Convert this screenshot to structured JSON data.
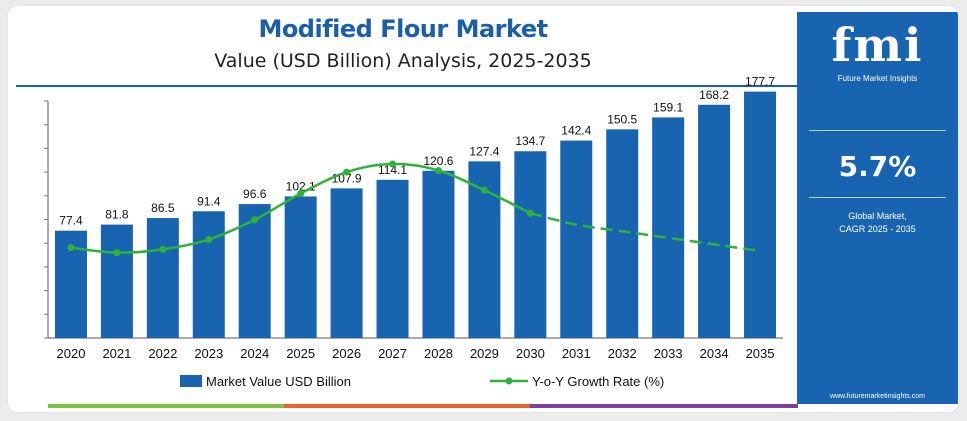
{
  "header": {
    "title": "Modified Flour Market",
    "subtitle": "Value (USD Billion) Analysis, 2025-2035"
  },
  "chart_data": {
    "type": "bar",
    "categories": [
      "2020",
      "2021",
      "2022",
      "2023",
      "2024",
      "2025",
      "2026",
      "2027",
      "2028",
      "2029",
      "2030",
      "2031",
      "2032",
      "2033",
      "2034",
      "2035"
    ],
    "series": [
      {
        "name": "Market Value USD Billion",
        "type": "bar",
        "values": [
          77.4,
          81.8,
          86.5,
          91.4,
          96.6,
          102.1,
          107.9,
          114.1,
          120.6,
          127.4,
          134.7,
          142.4,
          150.5,
          159.1,
          168.2,
          177.7
        ],
        "color": "#1864b0"
      },
      {
        "name": "Y-o-Y Growth Rate (%)",
        "type": "line",
        "values": [
          5.5,
          5.2,
          5.4,
          6.0,
          7.2,
          8.8,
          10.1,
          10.6,
          10.2,
          9.0,
          7.6,
          6.9,
          6.5,
          6.1,
          5.7,
          5.3
        ],
        "solid_until_index": 10,
        "color": "#2db33a"
      }
    ],
    "ylim": [
      0,
      200
    ],
    "y2lim": [
      0,
      14
    ],
    "legend_position": "bottom",
    "grid": false
  },
  "legend": {
    "bar_label": "Market Value USD Billion",
    "line_label": "Y-o-Y Growth Rate (%)"
  },
  "sidebar": {
    "logo_text": "fmi",
    "logo_subtext": "Future Market Insights",
    "cagr_value": "5.7%",
    "cagr_label_line1": "Global Market,",
    "cagr_label_line2": "CAGR 2025 - 2035",
    "website": "www.futuremarketinsights.com"
  },
  "colors": {
    "brand_blue": "#1864b0",
    "title_blue": "#1b5fa8",
    "growth_green": "#2db33a",
    "strip_green": "#7cc242",
    "strip_orange": "#e8632c",
    "strip_purple": "#7b3fa0"
  }
}
